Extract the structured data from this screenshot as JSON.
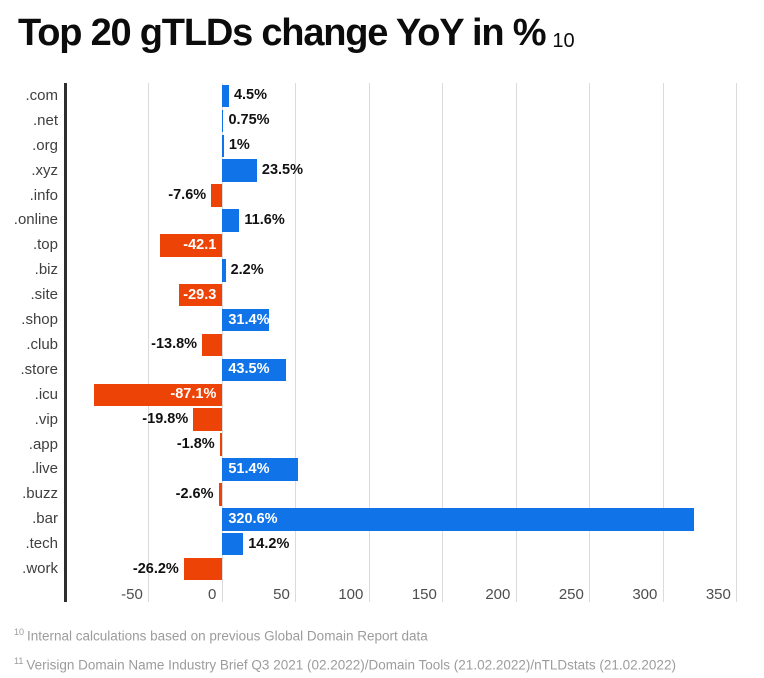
{
  "title": {
    "text": "Top 20 gTLDs change YoY in %",
    "superscript": "10"
  },
  "chart_data": {
    "type": "bar",
    "orientation": "horizontal",
    "title": "Top 20 gTLDs change YoY in %",
    "categories": [
      ".com",
      ".net",
      ".org",
      ".xyz",
      ".info",
      ".online",
      ".top",
      ".biz",
      ".site",
      ".shop",
      ".club",
      ".store",
      ".icu",
      ".vip",
      ".app",
      ".live",
      ".buzz",
      ".bar",
      ".tech",
      ".work"
    ],
    "values": [
      4.5,
      0.75,
      1,
      23.5,
      -7.6,
      11.6,
      -42.1,
      2.2,
      -29.3,
      31.4,
      -13.8,
      43.5,
      -87.1,
      -19.8,
      -1.8,
      51.4,
      -2.6,
      320.6,
      14.2,
      -26.2
    ],
    "value_labels": [
      "4.5%",
      "0.75%",
      "1%",
      "23.5%",
      "-7.6%",
      "11.6%",
      "-42.1",
      "2.2%",
      "-29.3",
      "31.4%",
      "-13.8%",
      "43.5%",
      "-87.1%",
      "-19.8%",
      "-1.8%",
      "51.4%",
      "-2.6%",
      "320.6%",
      "14.2%",
      "-26.2%"
    ],
    "label_inside": [
      false,
      false,
      false,
      false,
      false,
      false,
      true,
      false,
      true,
      true,
      false,
      true,
      true,
      false,
      false,
      true,
      false,
      true,
      false,
      false
    ],
    "x_ticks": [
      -50,
      0,
      50,
      100,
      150,
      200,
      250,
      300,
      350
    ],
    "x_tick_labels": [
      "-50",
      "0",
      "50",
      "100",
      "150",
      "200",
      "250",
      "300",
      "350"
    ],
    "xlim": [
      -105,
      363
    ],
    "grid": true,
    "legend": "none",
    "colors": {
      "positive": "#1173e8",
      "negative": "#ee4306",
      "label_inside": "#ffffff",
      "label_outside": "#111111",
      "gridline": "#dbdbdb",
      "axis": "#2e2e2e",
      "category": "#3f3f3f",
      "tick": "#4d4d4d"
    }
  },
  "footnotes": [
    {
      "sup": "10",
      "text": "Internal calculations based on previous Global Domain Report data"
    },
    {
      "sup": "11",
      "text": "Verisign Domain Name Industry Brief Q3 2021 (02.2022)/Domain Tools (21.02.2022)/nTLDstats (21.02.2022)"
    }
  ],
  "footnote_color": "#9c9c9c"
}
